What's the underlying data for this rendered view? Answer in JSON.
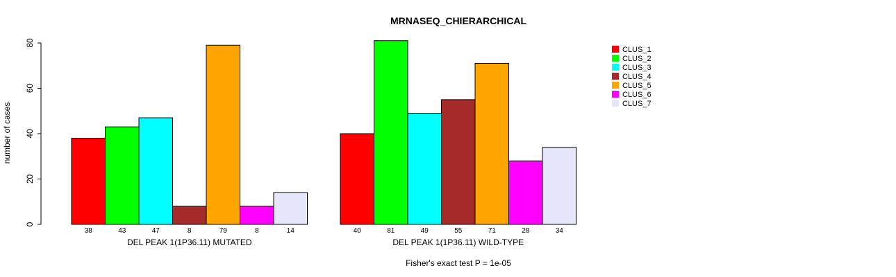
{
  "chart_data": {
    "type": "bar",
    "title": "MRNASEQ_CHIERARCHICAL",
    "ylabel": "number of cases",
    "ylim": [
      0,
      80
    ],
    "yticks": [
      0,
      20,
      40,
      60,
      80
    ],
    "footnote": "Fisher's exact test P = 1e-05",
    "legend": {
      "position": "top-right",
      "entries": [
        {
          "name": "CLUS_1",
          "color": "#FF0000"
        },
        {
          "name": "CLUS_2",
          "color": "#00FF00"
        },
        {
          "name": "CLUS_3",
          "color": "#00FFFF"
        },
        {
          "name": "CLUS_4",
          "color": "#A52A2A"
        },
        {
          "name": "CLUS_5",
          "color": "#FFA500"
        },
        {
          "name": "CLUS_6",
          "color": "#FF00FF"
        },
        {
          "name": "CLUS_7",
          "color": "#E6E6FA"
        }
      ]
    },
    "groups": [
      {
        "label": "DEL PEAK  1(1P36.11) MUTATED",
        "values": [
          38,
          43,
          47,
          8,
          79,
          8,
          14
        ]
      },
      {
        "label": "DEL PEAK  1(1P36.11) WILD-TYPE",
        "values": [
          40,
          81,
          49,
          55,
          71,
          28,
          34
        ]
      }
    ]
  }
}
